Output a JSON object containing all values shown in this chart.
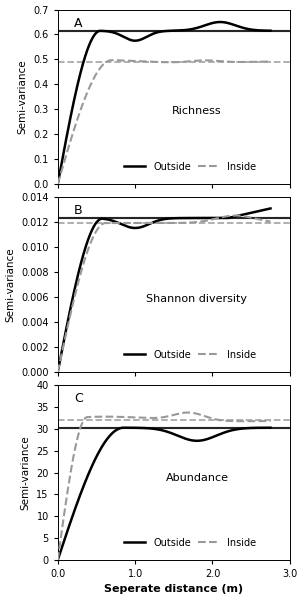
{
  "panels": [
    {
      "label": "A",
      "title": "Richness",
      "ylabel": "Semi-variance",
      "ylim": [
        0.0,
        0.7
      ],
      "yticks": [
        0.0,
        0.1,
        0.2,
        0.3,
        0.4,
        0.5,
        0.6,
        0.7
      ],
      "sill_outside": 0.615,
      "sill_inside": 0.49,
      "outside_range": 0.55,
      "inside_range": 0.7
    },
    {
      "label": "B",
      "title": "Shannon diversity",
      "ylabel": "Semi-variance",
      "ylim": [
        0.0,
        0.014
      ],
      "yticks": [
        0.0,
        0.002,
        0.004,
        0.006,
        0.008,
        0.01,
        0.012,
        0.014
      ],
      "sill_outside": 0.01235,
      "sill_inside": 0.01195,
      "outside_range": 0.6,
      "inside_range": 0.62
    },
    {
      "label": "C",
      "title": "Abundance",
      "ylabel": "Semi-variance",
      "xlabel": "Seperate distance (m)",
      "ylim": [
        0,
        40
      ],
      "yticks": [
        0,
        5,
        10,
        15,
        20,
        25,
        30,
        35,
        40
      ],
      "sill_outside": 30.3,
      "sill_inside": 32.0,
      "outside_range": 0.85,
      "inside_range": 0.38
    }
  ],
  "xlim": [
    0.0,
    3.0
  ],
  "xticks": [
    0.0,
    1.0,
    2.0,
    3.0
  ],
  "xmax_data": 2.75,
  "line_color_outside": "#000000",
  "line_color_inside": "#999999",
  "linewidth_outside": 1.8,
  "linewidth_inside": 1.5,
  "legend_outside": "Outside",
  "legend_inside": "Inside"
}
